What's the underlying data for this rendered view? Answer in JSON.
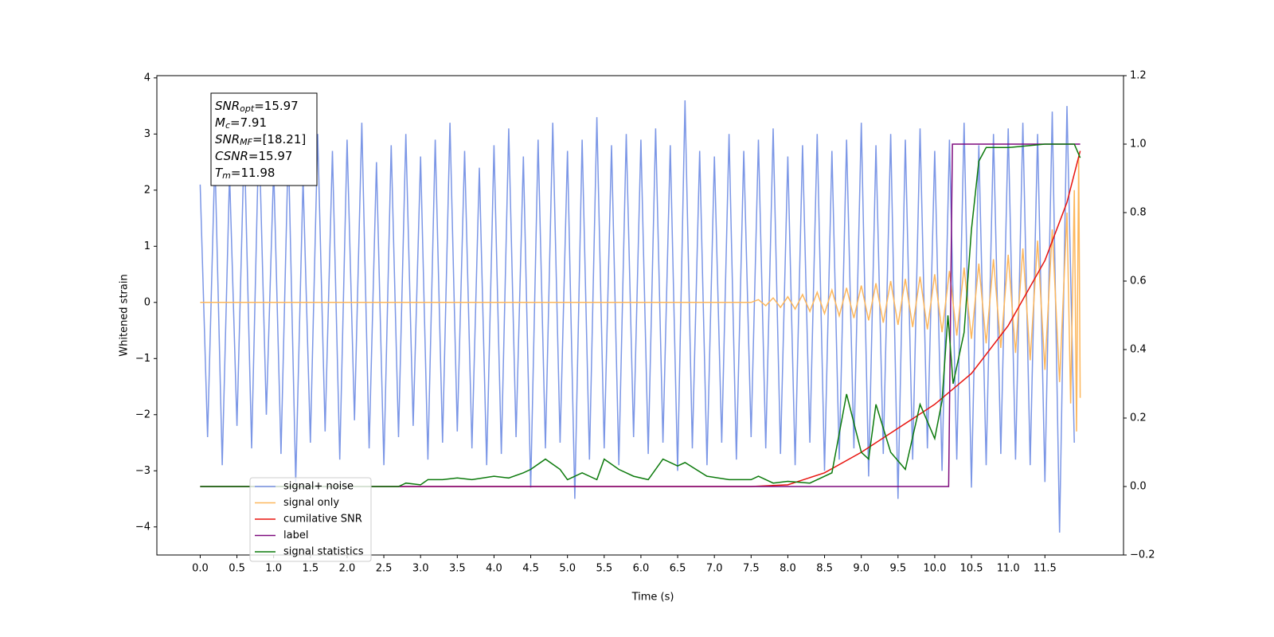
{
  "chart_data": {
    "type": "line",
    "xlabel": "Time (s)",
    "ylabel": "Whitened strain",
    "xlim": [
      -0.59,
      12.57
    ],
    "ylim": [
      -4.5,
      4.04
    ],
    "y2lim": [
      -0.2,
      1.2
    ],
    "xticks": [
      {
        "value": 0,
        "label": "0.0"
      },
      0.5,
      {
        "value": 1,
        "label": "1.0"
      },
      1.5,
      {
        "value": 2,
        "label": "2.0"
      },
      2.5,
      {
        "value": 3,
        "label": "3.0"
      },
      3.5,
      {
        "value": 4,
        "label": "4.0"
      },
      4.5,
      {
        "value": 5,
        "label": "5.0"
      },
      5.5,
      {
        "value": 6,
        "label": "6.0"
      },
      6.5,
      {
        "value": 7,
        "label": "7.0"
      },
      7.5,
      {
        "value": 8,
        "label": "8.0"
      },
      8.5,
      {
        "value": 9,
        "label": "9.0"
      },
      9.5,
      {
        "value": 10,
        "label": "10.0"
      },
      10.5,
      {
        "value": 11,
        "label": "11.0"
      },
      11.5
    ],
    "yticks": [
      {
        "value": -4,
        "label": "−4"
      },
      {
        "value": -3,
        "label": "−3"
      },
      {
        "value": -2,
        "label": "−2"
      },
      {
        "value": -1,
        "label": "−1"
      },
      0,
      1,
      2,
      3,
      4
    ],
    "y2ticks": [
      {
        "value": -0.2,
        "label": "−0.2"
      },
      {
        "value": 0,
        "label": "0.0"
      },
      0.2,
      0.4,
      0.6,
      0.8,
      {
        "value": 1,
        "label": "1.0"
      },
      1.2
    ],
    "legend": "lower left",
    "annotation": [
      {
        "name": "SNR",
        "sub": "opt",
        "text": "=15.97"
      },
      {
        "name": "M",
        "sub": "c",
        "text": "=7.91"
      },
      {
        "name": "SNR",
        "sub": "MF",
        "text": "=[18.21]"
      },
      {
        "name": "CSNR",
        "sub": null,
        "text": "=15.97"
      },
      {
        "name": "T",
        "sub": "m",
        "text": "=11.98"
      }
    ],
    "series": [
      {
        "name": "signal+ noise",
        "color": "#7b96e6",
        "x": [
          0,
          0.1,
          0.2,
          0.3,
          0.4,
          0.5,
          0.6,
          0.7,
          0.8,
          0.9,
          1,
          1.1,
          1.2,
          1.3,
          1.4,
          1.5,
          1.6,
          1.7,
          1.8,
          1.9,
          2,
          2.1,
          2.2,
          2.3,
          2.4,
          2.5,
          2.6,
          2.7,
          2.8,
          2.9,
          3,
          3.1,
          3.2,
          3.3,
          3.4,
          3.5,
          3.6,
          3.7,
          3.8,
          3.9,
          4,
          4.1,
          4.2,
          4.3,
          4.4,
          4.5,
          4.6,
          4.7,
          4.8,
          4.9,
          5,
          5.1,
          5.2,
          5.3,
          5.4,
          5.5,
          5.6,
          5.7,
          5.8,
          5.9,
          6,
          6.1,
          6.2,
          6.3,
          6.4,
          6.5,
          6.6,
          6.7,
          6.8,
          6.9,
          7,
          7.1,
          7.2,
          7.3,
          7.4,
          7.5,
          7.6,
          7.7,
          7.8,
          7.9,
          8,
          8.1,
          8.2,
          8.3,
          8.4,
          8.5,
          8.6,
          8.7,
          8.8,
          8.9,
          9,
          9.1,
          9.2,
          9.3,
          9.4,
          9.5,
          9.6,
          9.7,
          9.8,
          9.9,
          10,
          10.1,
          10.2,
          10.3,
          10.4,
          10.5,
          10.6,
          10.7,
          10.8,
          10.9,
          11,
          11.1,
          11.2,
          11.3,
          11.4,
          11.5,
          11.6,
          11.7,
          11.8,
          11.9
        ],
        "values": [
          2.1,
          -2.4,
          2.6,
          -2.9,
          2.3,
          -2.2,
          2.9,
          -2.6,
          3.1,
          -2.0,
          2.4,
          -2.7,
          2.8,
          -3.2,
          2.2,
          -2.5,
          3.0,
          -2.3,
          2.7,
          -2.8,
          2.9,
          -2.1,
          3.2,
          -2.6,
          2.5,
          -2.9,
          2.8,
          -2.4,
          3.0,
          -2.2,
          2.6,
          -2.8,
          2.9,
          -2.5,
          3.2,
          -2.3,
          2.7,
          -2.6,
          2.4,
          -2.9,
          2.8,
          -2.7,
          3.1,
          -2.4,
          2.6,
          -3.3,
          2.9,
          -2.6,
          3.2,
          -2.5,
          2.7,
          -3.5,
          2.9,
          -2.8,
          3.3,
          -2.6,
          2.8,
          -2.9,
          3.0,
          -2.4,
          2.9,
          -2.7,
          3.1,
          -2.5,
          2.8,
          -3.0,
          3.6,
          -2.6,
          2.7,
          -2.9,
          2.6,
          -2.5,
          3.0,
          -2.8,
          2.7,
          -2.4,
          2.9,
          -2.6,
          3.1,
          -2.7,
          2.6,
          -2.9,
          2.8,
          -2.5,
          3.0,
          -3.0,
          2.7,
          -2.8,
          2.9,
          -2.6,
          3.2,
          -3.1,
          2.8,
          -2.7,
          3.0,
          -3.5,
          2.9,
          -2.8,
          3.1,
          -2.6,
          2.7,
          -3.0,
          2.9,
          -2.8,
          3.2,
          -3.3,
          2.8,
          -2.9,
          3.0,
          -2.7,
          3.1,
          -2.8,
          3.2,
          -2.9,
          3.0,
          -3.2,
          3.4,
          -4.1,
          3.5,
          -2.5
        ]
      },
      {
        "name": "signal only",
        "color": "#fdb75c",
        "x": [
          0,
          7.5,
          7.6,
          7.7,
          7.8,
          7.9,
          8,
          8.1,
          8.2,
          8.3,
          8.4,
          8.5,
          8.6,
          8.7,
          8.8,
          8.9,
          9,
          9.1,
          9.2,
          9.3,
          9.4,
          9.5,
          9.6,
          9.7,
          9.8,
          9.9,
          10,
          10.1,
          10.2,
          10.3,
          10.4,
          10.5,
          10.6,
          10.7,
          10.8,
          10.9,
          11,
          11.1,
          11.2,
          11.3,
          11.4,
          11.5,
          11.6,
          11.7,
          11.8,
          11.85,
          11.9,
          11.93,
          11.96,
          11.98
        ],
        "values": [
          0,
          0,
          0.05,
          -0.06,
          0.08,
          -0.09,
          0.1,
          -0.12,
          0.14,
          -0.16,
          0.18,
          -0.2,
          0.22,
          -0.24,
          0.26,
          -0.28,
          0.3,
          -0.32,
          0.34,
          -0.36,
          0.38,
          -0.4,
          0.42,
          -0.44,
          0.46,
          -0.48,
          0.5,
          -0.53,
          0.56,
          -0.59,
          0.62,
          -0.65,
          0.69,
          -0.73,
          0.77,
          -0.81,
          0.85,
          -0.9,
          0.96,
          -1.03,
          1.1,
          -1.2,
          1.3,
          -1.42,
          1.6,
          -1.8,
          2.0,
          -2.3,
          2.6,
          -1.7
        ]
      },
      {
        "name": "cumilative SNR",
        "color": "#e8140f",
        "axis": "y2",
        "x": [
          0,
          7.5,
          8,
          8.5,
          9,
          9.5,
          10,
          10.5,
          11,
          11.5,
          11.8,
          11.98
        ],
        "values": [
          0,
          0,
          0.005,
          0.04,
          0.1,
          0.17,
          0.24,
          0.33,
          0.47,
          0.66,
          0.83,
          0.98
        ]
      },
      {
        "name": "label",
        "color": "#7d0a7d",
        "axis": "y2",
        "x": [
          0,
          10.19,
          10.24,
          11.98
        ],
        "values": [
          0,
          0,
          1,
          1
        ]
      },
      {
        "name": "signal statistics",
        "color": "#0c7a0c",
        "axis": "y2",
        "x": [
          0,
          2.7,
          2.8,
          3,
          3.1,
          3.3,
          3.5,
          3.7,
          4,
          4.2,
          4.4,
          4.5,
          4.7,
          4.9,
          5,
          5.2,
          5.4,
          5.5,
          5.7,
          5.9,
          6.1,
          6.3,
          6.5,
          6.6,
          6.9,
          7.2,
          7.5,
          7.6,
          7.8,
          8,
          8.3,
          8.6,
          8.8,
          9,
          9.1,
          9.2,
          9.4,
          9.6,
          9.8,
          10,
          10.1,
          10.18,
          10.25,
          10.4,
          10.5,
          10.6,
          10.7,
          11,
          11.5,
          11.9,
          11.98
        ],
        "values": [
          0,
          0,
          0.01,
          0.005,
          0.02,
          0.02,
          0.025,
          0.02,
          0.03,
          0.025,
          0.04,
          0.05,
          0.08,
          0.05,
          0.02,
          0.04,
          0.02,
          0.08,
          0.05,
          0.03,
          0.02,
          0.08,
          0.06,
          0.07,
          0.03,
          0.02,
          0.02,
          0.03,
          0.01,
          0.015,
          0.01,
          0.04,
          0.27,
          0.1,
          0.08,
          0.24,
          0.1,
          0.05,
          0.24,
          0.14,
          0.25,
          0.5,
          0.3,
          0.45,
          0.75,
          0.95,
          0.99,
          0.99,
          1.0,
          1.0,
          0.96
        ]
      }
    ]
  }
}
